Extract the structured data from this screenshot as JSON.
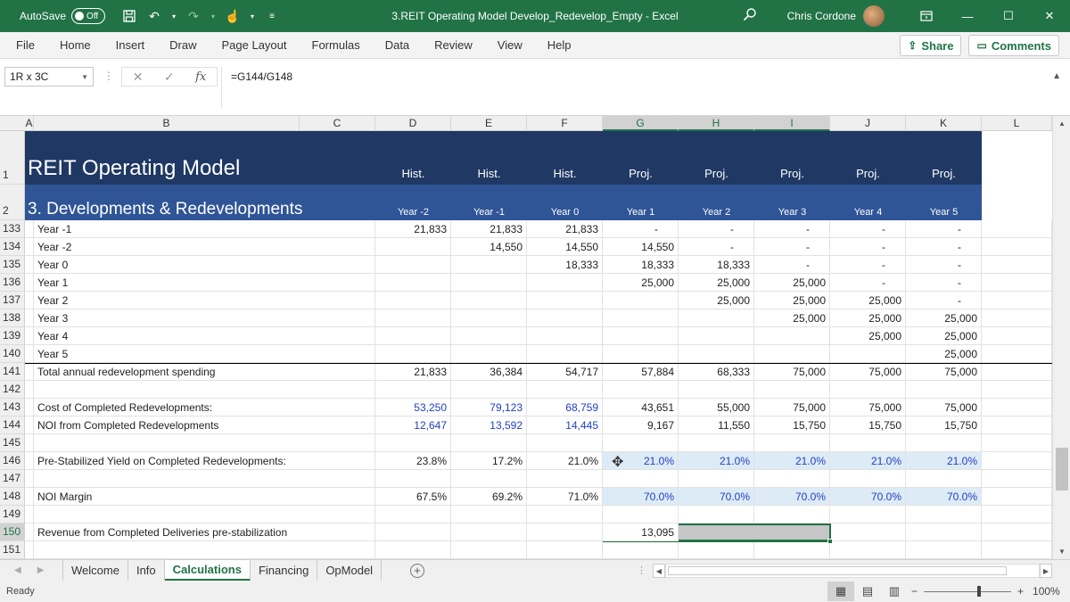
{
  "titlebar": {
    "autosave_label": "AutoSave",
    "autosave_state": "Off",
    "title": "3.REIT Operating Model Develop_Redevelop_Empty  -  Excel",
    "user": "Chris Cordone"
  },
  "menu": [
    "File",
    "Home",
    "Insert",
    "Draw",
    "Page Layout",
    "Formulas",
    "Data",
    "Review",
    "View",
    "Help"
  ],
  "share_label": "Share",
  "comments_label": "Comments",
  "namebox": "1R x 3C",
  "formula": "=G144/G148",
  "columns": [
    "A",
    "B",
    "C",
    "D",
    "E",
    "F",
    "G",
    "H",
    "I",
    "J",
    "K",
    "L"
  ],
  "banner": {
    "title": "REIT Operating Model",
    "subtitle": "3. Developments & Redevelopments",
    "row1": [
      "Hist.",
      "Hist.",
      "Hist.",
      "Proj.",
      "Proj.",
      "Proj.",
      "Proj.",
      "Proj."
    ],
    "row2": [
      "Year -2",
      "Year -1",
      "Year 0",
      "Year 1",
      "Year 2",
      "Year 3",
      "Year 4",
      "Year 5"
    ]
  },
  "rows": [
    {
      "n": "133",
      "label": "Year -1",
      "v": [
        "21,833",
        "21,833",
        "21,833",
        "-",
        "-",
        "-",
        "-",
        "-"
      ]
    },
    {
      "n": "134",
      "label": "Year -2",
      "v": [
        "",
        "14,550",
        "14,550",
        "14,550",
        "-",
        "-",
        "-",
        "-"
      ]
    },
    {
      "n": "135",
      "label": "Year 0",
      "v": [
        "",
        "",
        "18,333",
        "18,333",
        "18,333",
        "-",
        "-",
        "-"
      ]
    },
    {
      "n": "136",
      "label": "Year 1",
      "v": [
        "",
        "",
        "",
        "25,000",
        "25,000",
        "25,000",
        "-",
        "-"
      ]
    },
    {
      "n": "137",
      "label": "Year 2",
      "v": [
        "",
        "",
        "",
        "",
        "25,000",
        "25,000",
        "25,000",
        "-"
      ]
    },
    {
      "n": "138",
      "label": "Year 3",
      "v": [
        "",
        "",
        "",
        "",
        "",
        "25,000",
        "25,000",
        "25,000"
      ]
    },
    {
      "n": "139",
      "label": "Year 4",
      "v": [
        "",
        "",
        "",
        "",
        "",
        "",
        "25,000",
        "25,000"
      ]
    },
    {
      "n": "140",
      "label": "Year 5",
      "v": [
        "",
        "",
        "",
        "",
        "",
        "",
        "",
        "25,000"
      ]
    },
    {
      "n": "141",
      "label": "Total annual redevelopment spending",
      "v": [
        "21,833",
        "36,384",
        "54,717",
        "57,884",
        "68,333",
        "75,000",
        "75,000",
        "75,000"
      ]
    },
    {
      "n": "142",
      "label": "",
      "v": [
        "",
        "",
        "",
        "",
        "",
        "",
        "",
        ""
      ]
    },
    {
      "n": "143",
      "label": "Cost of Completed Redevelopments:",
      "v": [
        "53,250",
        "79,123",
        "68,759",
        "43,651",
        "55,000",
        "75,000",
        "75,000",
        "75,000"
      ]
    },
    {
      "n": "144",
      "label": "NOI from Completed Redevelopments",
      "v": [
        "12,647",
        "13,592",
        "14,445",
        "9,167",
        "11,550",
        "15,750",
        "15,750",
        "15,750"
      ]
    },
    {
      "n": "145",
      "label": "",
      "v": [
        "",
        "",
        "",
        "",
        "",
        "",
        "",
        ""
      ]
    },
    {
      "n": "146",
      "label": "Pre-Stabilized Yield on Completed Redevelopments:",
      "v": [
        "23.8%",
        "17.2%",
        "21.0%",
        "21.0%",
        "21.0%",
        "21.0%",
        "21.0%",
        "21.0%"
      ]
    },
    {
      "n": "147",
      "label": "",
      "v": [
        "",
        "",
        "",
        "",
        "",
        "",
        "",
        ""
      ]
    },
    {
      "n": "148",
      "label": "NOI Margin",
      "v": [
        "67.5%",
        "69.2%",
        "71.0%",
        "70.0%",
        "70.0%",
        "70.0%",
        "70.0%",
        "70.0%"
      ]
    },
    {
      "n": "149",
      "label": "",
      "v": [
        "",
        "",
        "",
        "",
        "",
        "",
        "",
        ""
      ]
    },
    {
      "n": "150",
      "label": "Revenue from Completed Deliveries pre-stabilization",
      "v": [
        "",
        "",
        "",
        "13,095",
        "",
        "",
        "",
        ""
      ]
    },
    {
      "n": "151",
      "label": "",
      "v": [
        "",
        "",
        "",
        "",
        "",
        "",
        "",
        ""
      ]
    }
  ],
  "sheets": [
    "Welcome",
    "Info",
    "Calculations",
    "Financing",
    "OpModel"
  ],
  "active_sheet": "Calculations",
  "status": "Ready",
  "zoom": "100%",
  "colors": {
    "excel_green": "#217346",
    "banner_dark": "#1f3864",
    "banner_mid": "#2f5597",
    "input_blue": "#1f3fc2",
    "proj_fill": "#ddebf7"
  }
}
